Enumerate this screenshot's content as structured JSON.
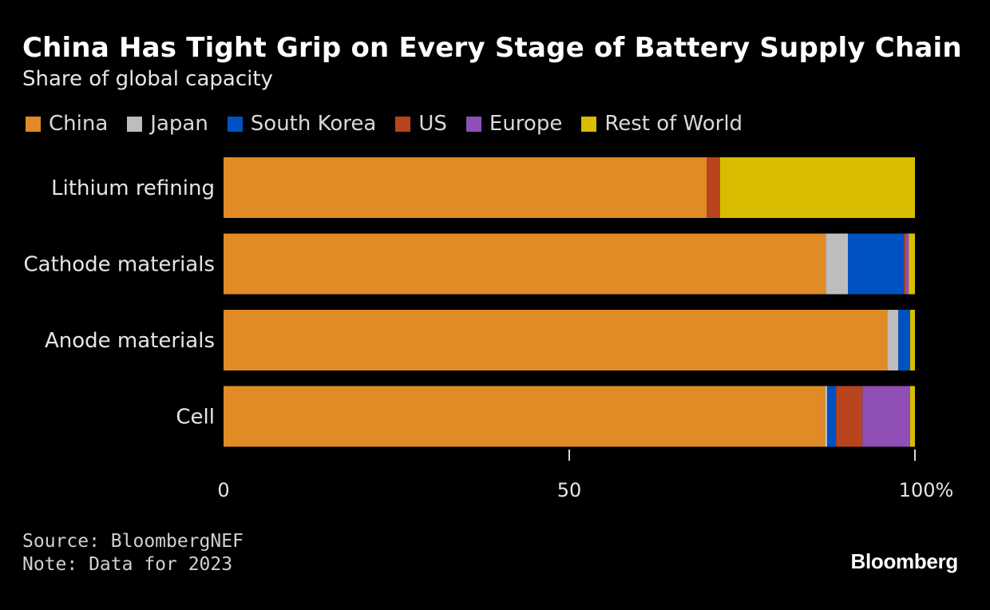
{
  "chart_data": {
    "type": "bar",
    "orientation": "horizontal",
    "stacked": true,
    "title": "China Has Tight Grip on Every Stage of Battery Supply Chain",
    "subtitle": "Share of global capacity",
    "xlabel": "",
    "ylabel": "",
    "xlim": [
      0,
      100
    ],
    "x_ticks": [
      {
        "value": 0,
        "label": "0"
      },
      {
        "value": 50,
        "label": "50"
      },
      {
        "value": 100,
        "label": "100%"
      }
    ],
    "grid": false,
    "legend_position": "top-left",
    "categories": [
      "Lithium refining",
      "Cathode materials",
      "Anode materials",
      "Cell"
    ],
    "series": [
      {
        "name": "China",
        "color": "#E08B26",
        "values": [
          69.9,
          87.1,
          96.0,
          87.0
        ]
      },
      {
        "name": "Japan",
        "color": "#BDBDBD",
        "values": [
          0,
          3.2,
          1.6,
          0.3
        ]
      },
      {
        "name": "South Korea",
        "color": "#0052C2",
        "values": [
          0,
          8.1,
          1.7,
          1.3
        ]
      },
      {
        "name": "US",
        "color": "#B8441E",
        "values": [
          1.9,
          0.2,
          0,
          3.8
        ]
      },
      {
        "name": "Europe",
        "color": "#8F4FB6",
        "values": [
          0,
          0.5,
          0,
          6.9
        ]
      },
      {
        "name": "Rest of World",
        "color": "#D8BD00",
        "values": [
          28.2,
          0.9,
          0.7,
          0.7
        ]
      }
    ]
  },
  "footer": {
    "source": "Source: BloombergNEF",
    "note": "Note: Data for 2023",
    "brand": "Bloomberg"
  }
}
